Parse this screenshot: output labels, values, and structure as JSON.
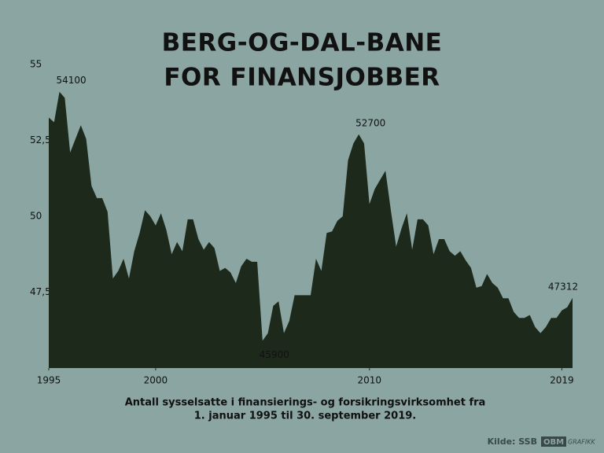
{
  "chart_data": {
    "type": "area",
    "title": [
      "BERG-OG-DAL-BANE",
      "FOR FINANSJOBBER"
    ],
    "subtitle": [
      "Antall sysselsatte i finansierings- og forsikringsvirksomhet fra",
      "1. januar 1995 til 30. september 2019."
    ],
    "source": "Kilde: SSB",
    "logo": [
      "OBM",
      "GRAFIKK"
    ],
    "color": "#1d2a1b",
    "x": [
      1995,
      1995.25,
      1995.5,
      1995.75,
      1996,
      1996.25,
      1996.5,
      1996.75,
      1997,
      1997.25,
      1997.5,
      1997.75,
      1998,
      1998.25,
      1998.5,
      1998.75,
      1999,
      1999.25,
      1999.5,
      1999.75,
      2000,
      2000.25,
      2000.5,
      2000.75,
      2001,
      2001.25,
      2001.5,
      2001.75,
      2002,
      2002.25,
      2002.5,
      2002.75,
      2003,
      2003.25,
      2003.5,
      2003.75,
      2004,
      2004.25,
      2004.5,
      2004.75,
      2005,
      2005.25,
      2005.5,
      2005.75,
      2006,
      2006.25,
      2006.5,
      2006.75,
      2007,
      2007.25,
      2007.5,
      2007.75,
      2008,
      2008.25,
      2008.5,
      2008.75,
      2009,
      2009.25,
      2009.5,
      2009.75,
      2010,
      2010.25,
      2010.5,
      2010.75,
      2011,
      2011.25,
      2011.5,
      2011.75,
      2012,
      2012.25,
      2012.5,
      2012.75,
      2013,
      2013.25,
      2013.5,
      2013.75,
      2014,
      2014.25,
      2014.5,
      2014.75,
      2015,
      2015.25,
      2015.5,
      2015.75,
      2016,
      2016.25,
      2016.5,
      2016.75,
      2017,
      2017.25,
      2017.5,
      2017.75,
      2018,
      2018.25,
      2018.5,
      2018.75,
      2019,
      2019.25,
      2019.5
    ],
    "values": [
      53.25,
      53.1,
      54.1,
      53.9,
      52.1,
      52.55,
      53.0,
      52.55,
      51.0,
      50.6,
      50.6,
      50.15,
      47.95,
      48.2,
      48.6,
      47.95,
      48.85,
      49.45,
      50.2,
      50.0,
      49.7,
      50.1,
      49.55,
      48.75,
      49.15,
      48.85,
      49.9,
      49.9,
      49.25,
      48.9,
      49.15,
      48.95,
      48.2,
      48.3,
      48.15,
      47.8,
      48.35,
      48.6,
      48.5,
      48.5,
      45.9,
      46.15,
      47.05,
      47.2,
      46.15,
      46.55,
      47.4,
      47.4,
      47.4,
      47.4,
      48.6,
      48.2,
      49.45,
      49.5,
      49.85,
      50.0,
      51.85,
      52.4,
      52.7,
      52.4,
      50.4,
      50.9,
      51.2,
      51.5,
      50.2,
      49.0,
      49.6,
      50.1,
      48.9,
      49.9,
      49.9,
      49.7,
      48.75,
      49.25,
      49.25,
      48.85,
      48.7,
      48.85,
      48.55,
      48.3,
      47.65,
      47.7,
      48.1,
      47.8,
      47.65,
      47.3,
      47.3,
      46.85,
      46.65,
      46.65,
      46.75,
      46.35,
      46.15,
      46.35,
      46.65,
      46.65,
      46.9,
      47.0,
      47.312
    ],
    "value_labels": [
      null,
      null,
      "54100",
      null,
      null,
      null,
      null,
      null,
      null,
      null,
      null,
      null,
      null,
      null,
      null,
      null,
      null,
      null,
      null,
      null,
      null,
      null,
      null,
      null,
      null,
      null,
      null,
      null,
      null,
      null,
      null,
      null,
      null,
      null,
      null,
      null,
      null,
      null,
      null,
      null,
      "45900",
      null,
      null,
      null,
      null,
      null,
      null,
      null,
      null,
      null,
      null,
      null,
      null,
      null,
      null,
      null,
      null,
      null,
      "52700",
      null,
      null,
      null,
      null,
      null,
      null,
      null,
      null,
      null,
      null,
      null,
      null,
      null,
      null,
      null,
      null,
      null,
      null,
      null,
      null,
      null,
      null,
      null,
      null,
      null,
      null,
      null,
      null,
      null,
      null,
      null,
      null,
      null,
      null,
      null,
      null,
      null,
      null,
      null,
      "47312"
    ],
    "xlim": [
      1995,
      2019.5
    ],
    "xticks": [
      1995,
      2000,
      2010,
      2019
    ],
    "ylim": [
      45,
      55
    ],
    "yticks": [
      {
        "value": 47.5,
        "label": "47,5"
      },
      50,
      {
        "value": 52.5,
        "label": "52,5"
      },
      55
    ]
  }
}
